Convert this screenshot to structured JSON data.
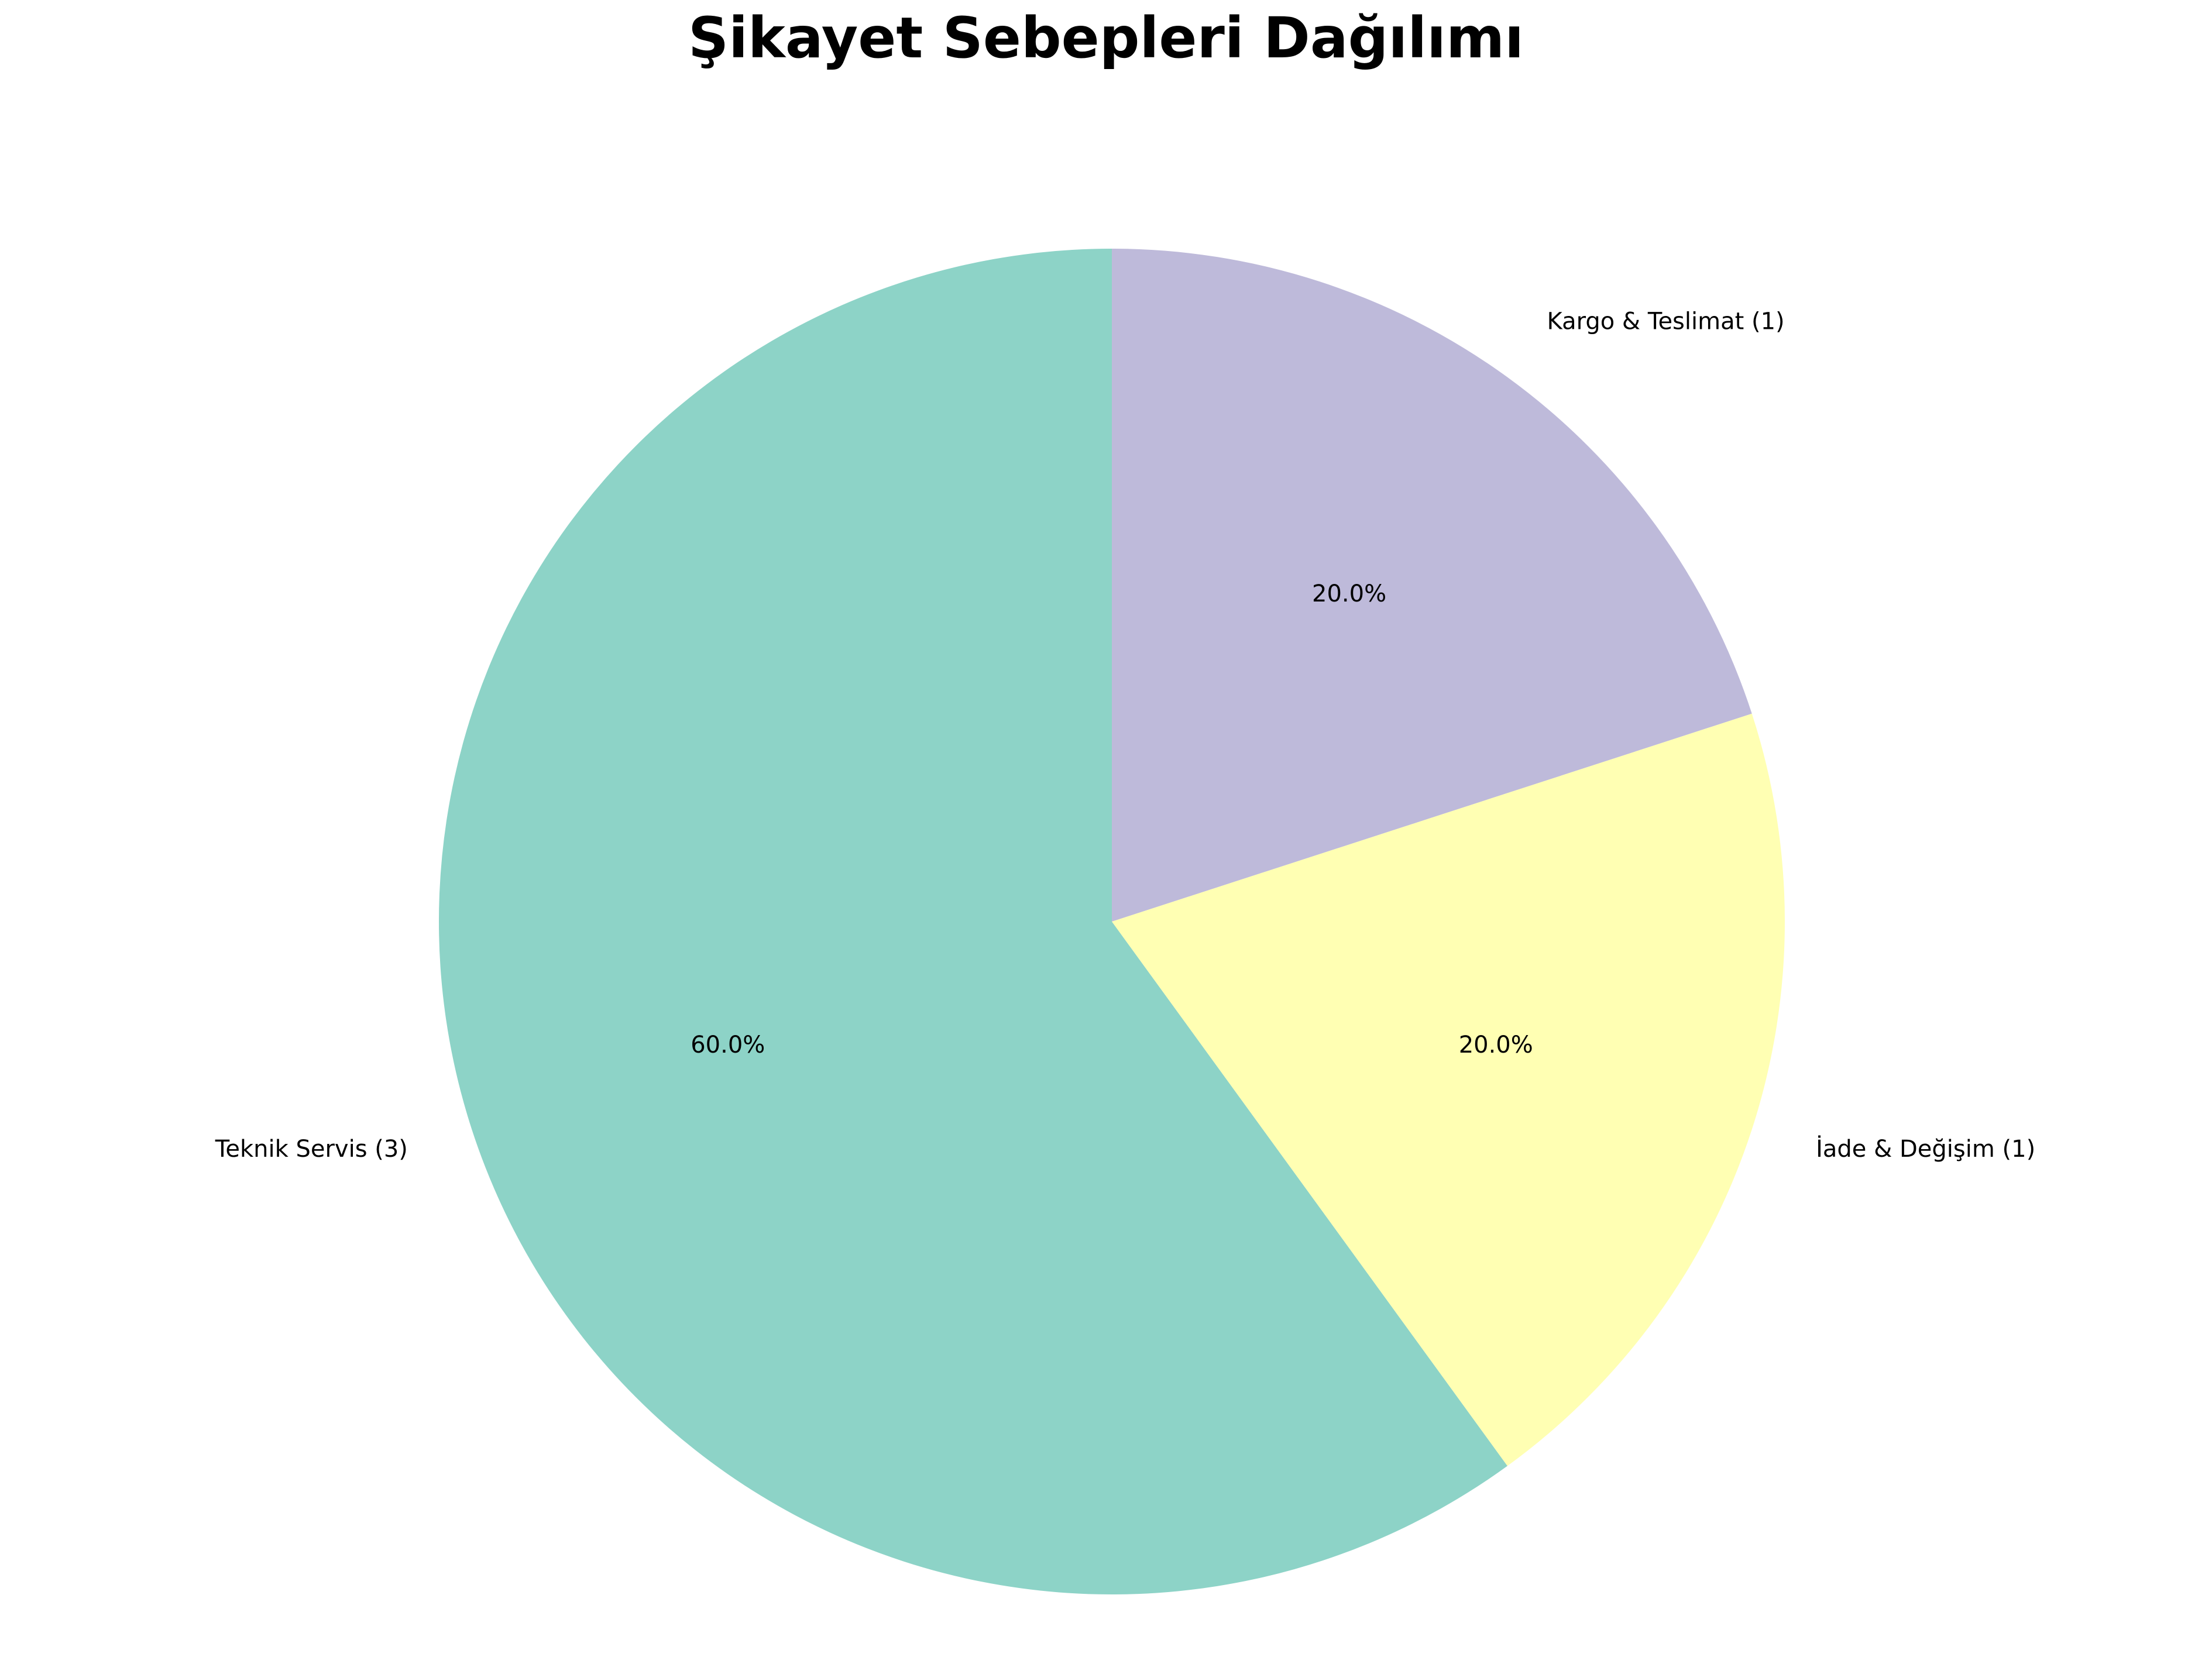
{
  "chart_data": {
    "type": "pie",
    "title": "Şikayet Sebepleri Dağılımı",
    "slices": [
      {
        "label": "Teknik Servis (3)",
        "value": 3,
        "percent_label": "60.0%",
        "color": "#8dd3c7"
      },
      {
        "label": "İade & Değişim (1)",
        "value": 1,
        "percent_label": "20.0%",
        "color": "#ffffb3"
      },
      {
        "label": "Kargo & Teslimat (1)",
        "value": 1,
        "percent_label": "20.0%",
        "color": "#bebada"
      }
    ],
    "start_angle_deg": 90,
    "direction": "counterclockwise",
    "legend": "none"
  }
}
